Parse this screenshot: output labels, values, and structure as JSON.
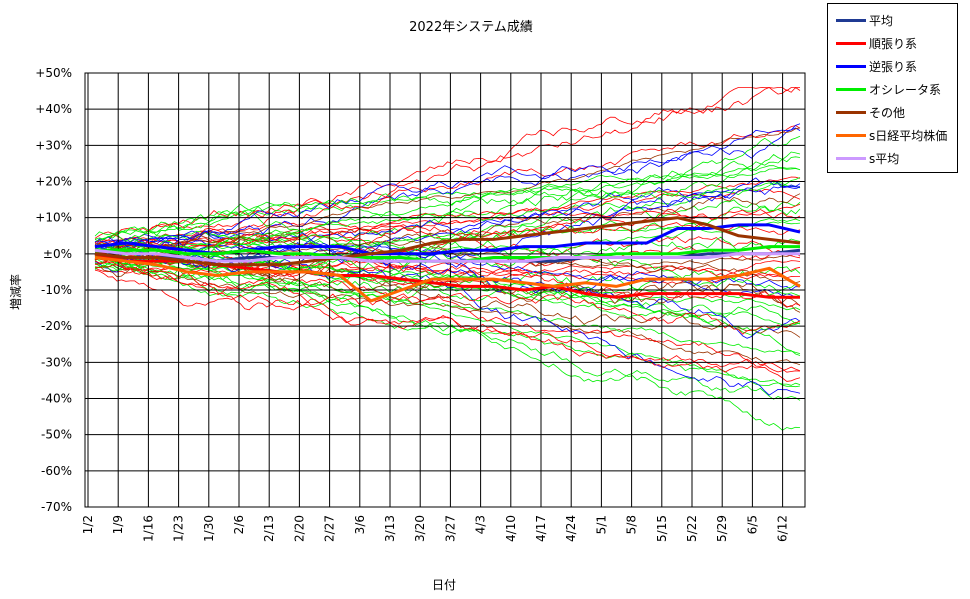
{
  "chart_data": {
    "type": "line",
    "title": "2022年システム成績",
    "xlabel": "日付",
    "ylabel": "増減率",
    "ylim": [
      -70,
      50
    ],
    "y_ticks": [
      "+50%",
      "+40%",
      "+30%",
      "+20%",
      "+10%",
      "±0%",
      "-10%",
      "-20%",
      "-30%",
      "-40%",
      "-50%",
      "-60%",
      "-70%"
    ],
    "x_ticks": [
      "1/2",
      "1/9",
      "1/16",
      "1/23",
      "1/30",
      "2/6",
      "2/13",
      "2/20",
      "2/27",
      "3/6",
      "3/13",
      "3/20",
      "3/27",
      "4/3",
      "4/10",
      "4/17",
      "4/24",
      "5/1",
      "5/8",
      "5/15",
      "5/22",
      "5/29",
      "6/5",
      "6/12"
    ],
    "grid": true,
    "legend_position": "outside-top-right",
    "series": [
      {
        "name": "平均",
        "color": "#1f3a93",
        "values": [
          0,
          -1,
          -1,
          -1,
          -2,
          -1,
          -1,
          -1,
          -1,
          -2,
          -2,
          -2,
          -2,
          -2,
          -2,
          -2,
          -1,
          -1,
          -1,
          -1,
          0,
          0,
          0,
          1
        ]
      },
      {
        "name": "順張り系",
        "color": "#ff0000",
        "values": [
          0,
          -2,
          -2,
          -2,
          -3,
          -4,
          -5,
          -5,
          -6,
          -6,
          -7,
          -8,
          -9,
          -9,
          -10,
          -9,
          -11,
          -12,
          -11,
          -11,
          -11,
          -11,
          -12,
          -12
        ]
      },
      {
        "name": "逆張り系",
        "color": "#0000ff",
        "values": [
          2,
          3,
          2,
          1,
          0,
          1,
          2,
          2,
          2,
          0,
          0,
          0,
          1,
          1,
          2,
          2,
          3,
          3,
          3,
          7,
          7,
          8,
          8,
          6
        ]
      },
      {
        "name": "オシレータ系",
        "color": "#00ee00",
        "values": [
          1,
          1,
          1,
          0,
          0,
          1,
          0,
          0,
          -1,
          -1,
          -1,
          -2,
          -2,
          -1,
          -1,
          -1,
          -1,
          0,
          0,
          0,
          1,
          1,
          2,
          2
        ]
      },
      {
        "name": "その他",
        "color": "#993300",
        "values": [
          0,
          -1,
          -1,
          -2,
          -3,
          -3,
          -3,
          -2,
          -1,
          0,
          1,
          3,
          4,
          4,
          5,
          6,
          7,
          8,
          9,
          10,
          8,
          5,
          4,
          3
        ]
      },
      {
        "name": "s日経平均株価",
        "color": "#ff6600",
        "values": [
          -1,
          -2,
          -3,
          -5,
          -6,
          -5,
          -5,
          -5,
          -6,
          -13,
          -10,
          -7,
          -7,
          -7,
          -8,
          -9,
          -8,
          -9,
          -7,
          -7,
          -7,
          -6,
          -4,
          -9
        ]
      },
      {
        "name": "s平均",
        "color": "#cc99ff",
        "values": [
          1,
          0,
          0,
          -1,
          -2,
          -2,
          -1,
          -1,
          -1,
          -2,
          -2,
          -2,
          -2,
          -2,
          -2,
          -1,
          -1,
          -1,
          -1,
          -1,
          -1,
          0,
          0,
          0
        ]
      }
    ],
    "background_series_count": 60
  }
}
